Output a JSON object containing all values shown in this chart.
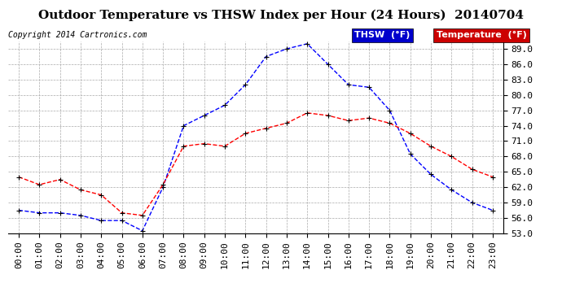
{
  "title": "Outdoor Temperature vs THSW Index per Hour (24 Hours)  20140704",
  "copyright": "Copyright 2014 Cartronics.com",
  "hours": [
    "00:00",
    "01:00",
    "02:00",
    "03:00",
    "04:00",
    "05:00",
    "06:00",
    "07:00",
    "08:00",
    "09:00",
    "10:00",
    "11:00",
    "12:00",
    "13:00",
    "14:00",
    "15:00",
    "16:00",
    "17:00",
    "18:00",
    "19:00",
    "20:00",
    "21:00",
    "22:00",
    "23:00"
  ],
  "thsw": [
    57.5,
    57.0,
    57.0,
    56.5,
    55.5,
    55.5,
    53.5,
    62.0,
    74.0,
    76.0,
    78.0,
    82.0,
    87.5,
    89.0,
    90.0,
    86.0,
    82.0,
    81.5,
    77.0,
    68.5,
    64.5,
    61.5,
    59.0,
    57.5
  ],
  "temperature": [
    64.0,
    62.5,
    63.5,
    61.5,
    60.5,
    57.0,
    56.5,
    62.5,
    70.0,
    70.5,
    70.0,
    72.5,
    73.5,
    74.5,
    76.5,
    76.0,
    75.0,
    75.5,
    74.5,
    72.5,
    70.0,
    68.0,
    65.5,
    64.0
  ],
  "ylim": [
    53.0,
    90.5
  ],
  "yticks": [
    53.0,
    56.0,
    59.0,
    62.0,
    65.0,
    68.0,
    71.0,
    74.0,
    77.0,
    80.0,
    83.0,
    86.0,
    89.0
  ],
  "thsw_color": "#0000ff",
  "temp_color": "#ff0000",
  "thsw_label": "THSW  (°F)",
  "temp_label": "Temperature  (°F)",
  "legend_thsw_bg": "#0000cc",
  "legend_temp_bg": "#cc0000",
  "background_color": "#ffffff",
  "grid_color": "#aaaaaa",
  "title_fontsize": 11,
  "axis_fontsize": 8,
  "copyright_fontsize": 7
}
